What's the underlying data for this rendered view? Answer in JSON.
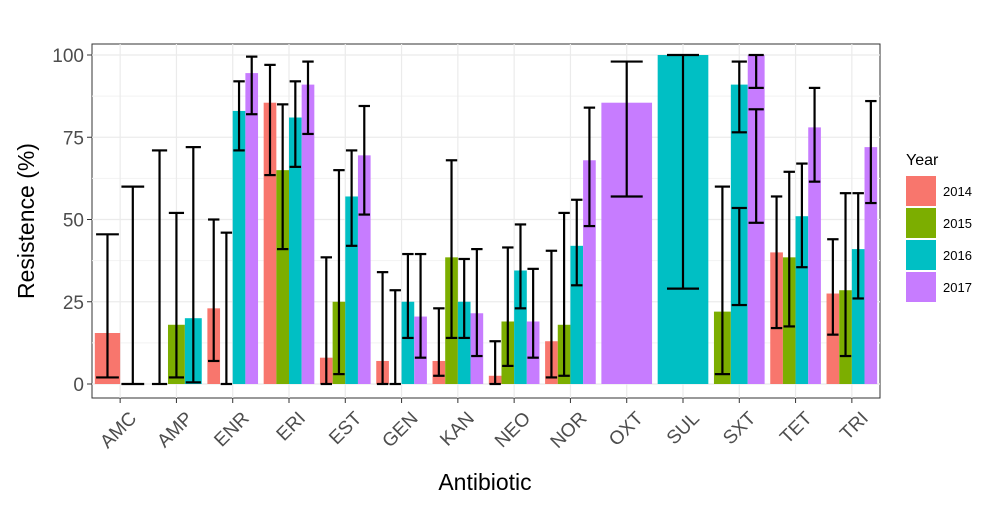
{
  "chart_data": {
    "type": "bar",
    "xlabel": "Antibiotic",
    "ylabel": "Resistence (%)",
    "ylim": [
      0,
      100
    ],
    "yticks": [
      0,
      25,
      50,
      75,
      100
    ],
    "grid": true,
    "legend": {
      "title": "Year",
      "placement": "right",
      "entries": [
        "2014",
        "2015",
        "2016",
        "2017"
      ]
    },
    "colors": {
      "2014": "#F8766D",
      "2015": "#7CAE00",
      "2016": "#00BFC4",
      "2017": "#C77CFF"
    },
    "categories": [
      "AMC",
      "AMP",
      "ENR",
      "ERI",
      "EST",
      "GEN",
      "KAN",
      "NEO",
      "NOR",
      "OXT",
      "SUL",
      "SXT",
      "TET",
      "TRI"
    ],
    "groups": [
      {
        "category": "AMC",
        "bars": [
          {
            "year": "2014",
            "value": 15.5,
            "errors": [
              [
                2,
                45.5
              ]
            ]
          },
          {
            "year": "2015",
            "value": 0,
            "errors": [
              [
                0,
                60
              ]
            ]
          }
        ]
      },
      {
        "category": "AMP",
        "bars": [
          {
            "year": "2014",
            "value": 0,
            "errors": [
              [
                0,
                71
              ]
            ]
          },
          {
            "year": "2015",
            "value": 18,
            "errors": [
              [
                2,
                52
              ]
            ]
          },
          {
            "year": "2016",
            "value": 20,
            "errors": [
              [
                0.5,
                72
              ]
            ]
          }
        ]
      },
      {
        "category": "ENR",
        "bars": [
          {
            "year": "2014",
            "value": 23,
            "errors": [
              [
                7,
                50
              ]
            ]
          },
          {
            "year": "2015",
            "value": 0,
            "errors": [
              [
                0,
                46
              ]
            ]
          },
          {
            "year": "2016",
            "value": 83,
            "errors": [
              [
                71,
                92
              ]
            ]
          },
          {
            "year": "2017",
            "value": 94.5,
            "errors": [
              [
                82,
                99.5
              ]
            ]
          }
        ]
      },
      {
        "category": "ERI",
        "bars": [
          {
            "year": "2014",
            "value": 85.5,
            "errors": [
              [
                63.5,
                97
              ]
            ]
          },
          {
            "year": "2015",
            "value": 65,
            "errors": [
              [
                41,
                85
              ]
            ]
          },
          {
            "year": "2016",
            "value": 81,
            "errors": [
              [
                66,
                92
              ]
            ]
          },
          {
            "year": "2017",
            "value": 91,
            "errors": [
              [
                76,
                98
              ]
            ]
          }
        ]
      },
      {
        "category": "EST",
        "bars": [
          {
            "year": "2014",
            "value": 8,
            "errors": [
              [
                0,
                38.5
              ]
            ]
          },
          {
            "year": "2015",
            "value": 25,
            "errors": [
              [
                3,
                65
              ]
            ]
          },
          {
            "year": "2016",
            "value": 57,
            "errors": [
              [
                42,
                71
              ]
            ]
          },
          {
            "year": "2017",
            "value": 69.5,
            "errors": [
              [
                51.5,
                84.5
              ]
            ]
          }
        ]
      },
      {
        "category": "GEN",
        "bars": [
          {
            "year": "2014",
            "value": 7,
            "errors": [
              [
                0,
                34
              ]
            ]
          },
          {
            "year": "2015",
            "value": 0,
            "errors": [
              [
                0,
                28.5
              ]
            ]
          },
          {
            "year": "2016",
            "value": 25,
            "errors": [
              [
                14,
                39.5
              ]
            ]
          },
          {
            "year": "2017",
            "value": 20.5,
            "errors": [
              [
                8,
                39.5
              ]
            ]
          }
        ]
      },
      {
        "category": "KAN",
        "bars": [
          {
            "year": "2014",
            "value": 7,
            "errors": [
              [
                2.5,
                23
              ]
            ]
          },
          {
            "year": "2015",
            "value": 38.5,
            "errors": [
              [
                14,
                68
              ]
            ]
          },
          {
            "year": "2016",
            "value": 25,
            "errors": [
              [
                14,
                38
              ]
            ]
          },
          {
            "year": "2017",
            "value": 21.5,
            "errors": [
              [
                8.5,
                41
              ]
            ]
          }
        ]
      },
      {
        "category": "NEO",
        "bars": [
          {
            "year": "2014",
            "value": 2.5,
            "errors": [
              [
                0,
                13
              ]
            ]
          },
          {
            "year": "2015",
            "value": 19,
            "errors": [
              [
                5.5,
                41.5
              ]
            ]
          },
          {
            "year": "2016",
            "value": 34.5,
            "errors": [
              [
                23,
                48.5
              ]
            ]
          },
          {
            "year": "2017",
            "value": 19,
            "errors": [
              [
                8,
                35
              ]
            ]
          }
        ]
      },
      {
        "category": "NOR",
        "bars": [
          {
            "year": "2014",
            "value": 13,
            "errors": [
              [
                2,
                40.5
              ]
            ]
          },
          {
            "year": "2015",
            "value": 18,
            "errors": [
              [
                2.5,
                52
              ]
            ]
          },
          {
            "year": "2016",
            "value": 42,
            "errors": [
              [
                30,
                56
              ]
            ]
          },
          {
            "year": "2017",
            "value": 68,
            "errors": [
              [
                48,
                84
              ]
            ]
          }
        ]
      },
      {
        "category": "OXT",
        "bars": [
          {
            "year": "2017",
            "value": 85.5,
            "errors": [
              [
                57,
                98
              ]
            ]
          }
        ]
      },
      {
        "category": "SUL",
        "bars": [
          {
            "year": "2016",
            "value": 100,
            "errors": [
              [
                29,
                100
              ]
            ]
          }
        ]
      },
      {
        "category": "SXT",
        "bars": [
          {
            "year": "2015",
            "value": 22,
            "errors": [
              [
                3,
                60
              ]
            ]
          },
          {
            "year": "2016",
            "value": 91,
            "errors": [
              [
                76.5,
                98
              ],
              [
                24,
                53.5
              ]
            ]
          },
          {
            "year": "2017",
            "value": 100,
            "errors": [
              [
                90,
                100
              ],
              [
                49,
                83.5
              ]
            ]
          }
        ]
      },
      {
        "category": "TET",
        "bars": [
          {
            "year": "2014",
            "value": 40,
            "errors": [
              [
                17,
                57
              ]
            ]
          },
          {
            "year": "2015",
            "value": 38.5,
            "errors": [
              [
                17.5,
                64.5
              ]
            ]
          },
          {
            "year": "2016",
            "value": 51,
            "errors": [
              [
                35.5,
                67
              ]
            ]
          },
          {
            "year": "2017",
            "value": 78,
            "errors": [
              [
                61.5,
                90
              ]
            ]
          }
        ]
      },
      {
        "category": "TRI",
        "bars": [
          {
            "year": "2014",
            "value": 27.5,
            "errors": [
              [
                15,
                44
              ]
            ]
          },
          {
            "year": "2015",
            "value": 28.5,
            "errors": [
              [
                8.5,
                58
              ]
            ]
          },
          {
            "year": "2016",
            "value": 41,
            "errors": [
              [
                26,
                58
              ]
            ]
          },
          {
            "year": "2017",
            "value": 72,
            "errors": [
              [
                55,
                86
              ]
            ]
          }
        ]
      }
    ]
  }
}
